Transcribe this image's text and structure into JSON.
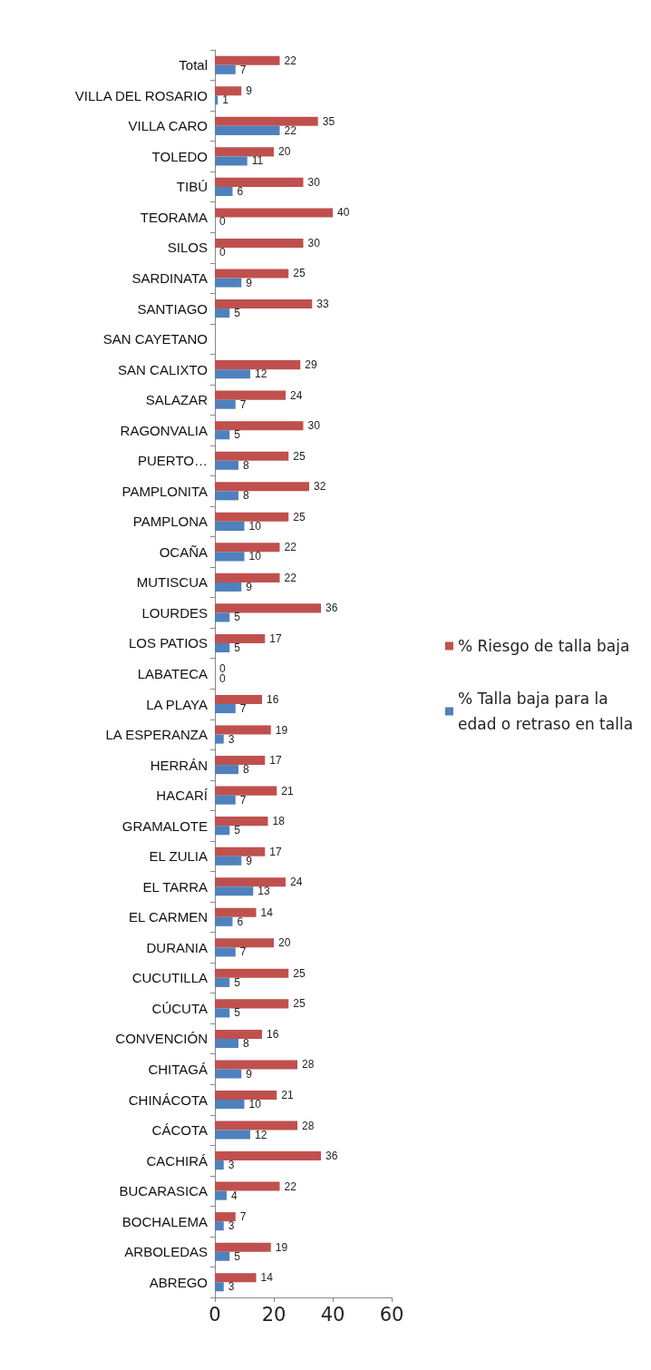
{
  "chart_data": {
    "type": "bar",
    "orientation": "horizontal",
    "categories": [
      "Total",
      "VILLA DEL ROSARIO",
      "VILLA CARO",
      "TOLEDO",
      "TIBÚ",
      "TEORAMA",
      "SILOS",
      "SARDINATA",
      "SANTIAGO",
      "SAN CAYETANO",
      "SAN CALIXTO",
      "SALAZAR",
      "RAGONVALIA",
      "PUERTO…",
      "PAMPLONITA",
      "PAMPLONA",
      "OCAÑA",
      "MUTISCUA",
      "LOURDES",
      "LOS PATIOS",
      "LABATECA",
      "LA PLAYA",
      "LA ESPERANZA",
      "HERRÁN",
      "HACARÍ",
      "GRAMALOTE",
      "EL ZULIA",
      "EL TARRA",
      "EL CARMEN",
      "DURANIA",
      "CUCUTILLA",
      "CÚCUTA",
      "CONVENCIÓN",
      "CHITAGÁ",
      "CHINÁCOTA",
      "CÁCOTA",
      "CACHIRÁ",
      "BUCARASICA",
      "BOCHALEMA",
      "ARBOLEDAS",
      "ABREGO"
    ],
    "series": [
      {
        "name": "% Riesgo de talla baja",
        "color": "#c0504d",
        "values": [
          22,
          9,
          35,
          20,
          30,
          40,
          30,
          25,
          33,
          null,
          29,
          24,
          30,
          25,
          32,
          25,
          22,
          22,
          36,
          17,
          0,
          16,
          19,
          17,
          21,
          18,
          17,
          24,
          14,
          20,
          25,
          25,
          16,
          28,
          21,
          28,
          36,
          22,
          7,
          19,
          14
        ]
      },
      {
        "name": "% Talla baja para la edad o retraso en talla",
        "color": "#4f81bd",
        "values": [
          7,
          1,
          22,
          11,
          6,
          0,
          0,
          9,
          5,
          null,
          12,
          7,
          5,
          8,
          8,
          10,
          10,
          9,
          5,
          5,
          0,
          7,
          3,
          8,
          7,
          5,
          9,
          13,
          6,
          7,
          5,
          5,
          8,
          9,
          10,
          12,
          3,
          4,
          3,
          5,
          3
        ]
      }
    ],
    "xlim": [
      0,
      60
    ],
    "xticks": [
      0,
      20,
      40,
      60
    ],
    "grid": false,
    "legend": "right",
    "data_labels": true
  }
}
